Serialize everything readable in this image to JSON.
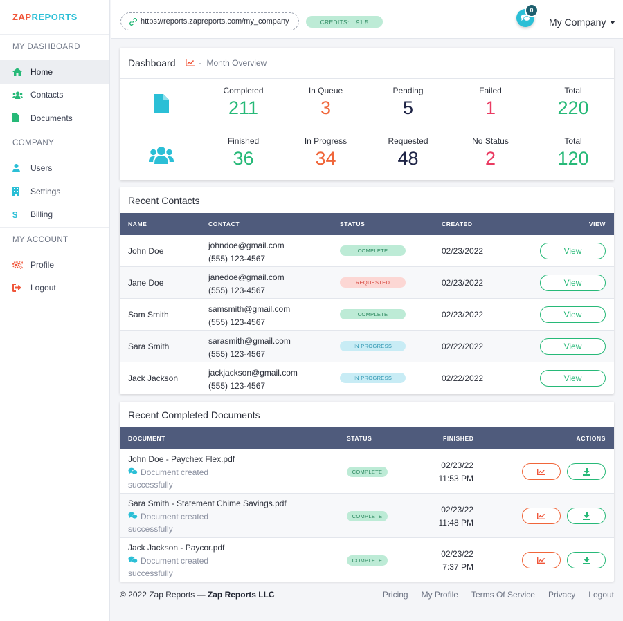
{
  "brand": {
    "part1": "ZAP",
    "part2": "REPORTS"
  },
  "sidebar": {
    "sections": [
      {
        "title": "MY DASHBOARD",
        "items": [
          {
            "label": "Home",
            "icon": "home-icon",
            "active": true
          },
          {
            "label": "Contacts",
            "icon": "users-icon"
          },
          {
            "label": "Documents",
            "icon": "file-icon"
          }
        ]
      },
      {
        "title": "COMPANY",
        "items": [
          {
            "label": "Users",
            "icon": "user-icon"
          },
          {
            "label": "Settings",
            "icon": "building-icon"
          },
          {
            "label": "Billing",
            "icon": "dollar-icon"
          }
        ]
      },
      {
        "title": "MY ACCOUNT",
        "items": [
          {
            "label": "Profile",
            "icon": "gears-icon"
          },
          {
            "label": "Logout",
            "icon": "sign-out-icon"
          }
        ]
      }
    ]
  },
  "topbar": {
    "url": "https://reports.zapreports.com/my_company",
    "credits_label": "CREDITS:",
    "credits_value": "91.5",
    "notifications": "0",
    "company": "My Company"
  },
  "dashboard": {
    "title": "Dashboard",
    "sep": "-",
    "subtitle": "Month Overview",
    "documents": [
      {
        "label": "Completed",
        "value": "211",
        "color": "#27b978"
      },
      {
        "label": "In Queue",
        "value": "3",
        "color": "#f0663a"
      },
      {
        "label": "Pending",
        "value": "5",
        "color": "#1e2446"
      },
      {
        "label": "Failed",
        "value": "1",
        "color": "#ea3b62"
      },
      {
        "label": "Total",
        "value": "220",
        "color": "#27b978"
      }
    ],
    "contacts": [
      {
        "label": "Finished",
        "value": "36",
        "color": "#27b978"
      },
      {
        "label": "In Progress",
        "value": "34",
        "color": "#f0663a"
      },
      {
        "label": "Requested",
        "value": "48",
        "color": "#1e2446"
      },
      {
        "label": "No Status",
        "value": "2",
        "color": "#ea3b62"
      },
      {
        "label": "Total",
        "value": "120",
        "color": "#27b978"
      }
    ]
  },
  "recent_contacts": {
    "title": "Recent Contacts",
    "headers": {
      "name": "NAME",
      "contact": "CONTACT",
      "status": "STATUS",
      "created": "CREATED",
      "view": "VIEW"
    },
    "view_label": "View",
    "rows": [
      {
        "name": "John Doe",
        "email": "johndoe@gmail.com",
        "phone": "(555) 123-4567",
        "status": "COMPLETE",
        "created": "02/23/2022"
      },
      {
        "name": "Jane Doe",
        "email": "janedoe@gmail.com",
        "phone": "(555) 123-4567",
        "status": "REQUESTED",
        "created": "02/23/2022"
      },
      {
        "name": "Sam Smith",
        "email": "samsmith@gmail.com",
        "phone": "(555) 123-4567",
        "status": "COMPLETE",
        "created": "02/23/2022"
      },
      {
        "name": "Sara Smith",
        "email": "sarasmith@gmail.com",
        "phone": "(555) 123-4567",
        "status": "IN PROGRESS",
        "created": "02/22/2022"
      },
      {
        "name": "Jack Jackson",
        "email": "jackjackson@gmail.com",
        "phone": "(555) 123-4567",
        "status": "IN PROGRESS",
        "created": "02/22/2022"
      }
    ]
  },
  "recent_documents": {
    "title": "Recent Completed Documents",
    "headers": {
      "document": "DOCUMENT",
      "status": "STATUS",
      "finished": "FINISHED",
      "actions": "ACTIONS"
    },
    "rows": [
      {
        "name": "John Doe - Paychex Flex.pdf",
        "message1": "Document created",
        "message2": "successfully",
        "status": "COMPLETE",
        "date": "02/23/22",
        "time": "11:53 PM"
      },
      {
        "name": "Sara Smith - Statement Chime Savings.pdf",
        "message1": "Document created",
        "message2": "successfully",
        "status": "COMPLETE",
        "date": "02/23/22",
        "time": "11:48 PM"
      },
      {
        "name": "Jack Jackson - Paycor.pdf",
        "message1": "Document created",
        "message2": "successfully",
        "status": "COMPLETE",
        "date": "02/23/22",
        "time": "7:37 PM"
      }
    ]
  },
  "footer": {
    "copyright": "© 2022 Zap Reports —",
    "company": "Zap Reports LLC",
    "links": [
      "Pricing",
      "My Profile",
      "Terms Of Service",
      "Privacy",
      "Logout"
    ]
  }
}
